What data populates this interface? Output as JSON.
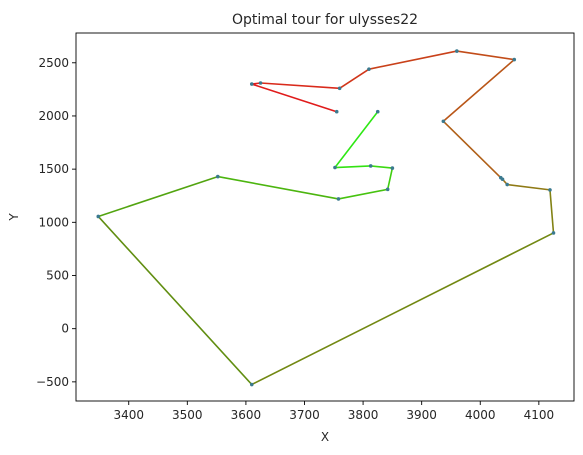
{
  "chart_data": {
    "type": "line",
    "title": "Optimal tour for ulysses22",
    "xlabel": "X",
    "ylabel": "Y",
    "xlim": [
      3310,
      3160
    ],
    "ylim": [
      -680,
      2780
    ],
    "x_ticks": [
      3400,
      3500,
      3600,
      3700,
      3800,
      3900,
      4000,
      4100
    ],
    "y_ticks": [
      -500,
      0,
      500,
      1000,
      1500,
      2000,
      2500
    ],
    "grid": false,
    "point_color": "#3b7a8f",
    "tour": [
      {
        "x": 3755,
        "y": 2040
      },
      {
        "x": 3610,
        "y": 2300
      },
      {
        "x": 3625,
        "y": 2310
      },
      {
        "x": 3760,
        "y": 2260
      },
      {
        "x": 3810,
        "y": 2440
      },
      {
        "x": 3960,
        "y": 2610
      },
      {
        "x": 4058,
        "y": 2530
      },
      {
        "x": 3937,
        "y": 1950
      },
      {
        "x": 4035,
        "y": 1420
      },
      {
        "x": 4038,
        "y": 1405
      },
      {
        "x": 4046,
        "y": 1355
      },
      {
        "x": 4119,
        "y": 1305
      },
      {
        "x": 4125,
        "y": 900
      },
      {
        "x": 3610,
        "y": -525
      },
      {
        "x": 3348,
        "y": 1055
      },
      {
        "x": 3552,
        "y": 1430
      },
      {
        "x": 3758,
        "y": 1220
      },
      {
        "x": 3842,
        "y": 1310
      },
      {
        "x": 3850,
        "y": 1510
      },
      {
        "x": 3813,
        "y": 1530
      },
      {
        "x": 3752,
        "y": 1515
      },
      {
        "x": 3825,
        "y": 2040
      }
    ],
    "segment_colors": [
      "#e01b1b",
      "#e01b1b",
      "#d92a1b",
      "#d1361a",
      "#c9411a",
      "#c24c19",
      "#b95618",
      "#b06018",
      "#a66a17",
      "#9b7216",
      "#8f7a15",
      "#828214",
      "#728812",
      "#618e11",
      "#52a410",
      "#4cb50f",
      "#46c30f",
      "#40ce10",
      "#3bd911",
      "#33e212",
      "#2ee814"
    ]
  }
}
